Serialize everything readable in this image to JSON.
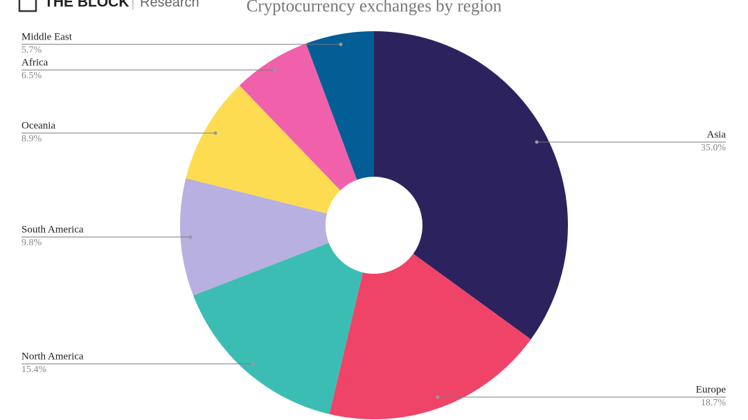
{
  "brand": "THE BLOCK",
  "brand_sub": "Research",
  "chart_data": {
    "type": "pie",
    "title": "Cryptocurrency exchanges by region",
    "categories": [
      "Asia",
      "Europe",
      "North America",
      "South America",
      "Oceania",
      "Africa",
      "Middle East"
    ],
    "values": [
      35.0,
      18.7,
      15.4,
      9.8,
      8.9,
      6.5,
      5.7
    ],
    "value_labels": [
      "35.0%",
      "18.7%",
      "15.4%",
      "9.8%",
      "8.9%",
      "6.5%",
      "5.7%"
    ],
    "colors": [
      "#2c235e",
      "#ef4468",
      "#3cbdb4",
      "#b7b0e0",
      "#fddc52",
      "#f060ab",
      "#045e96"
    ],
    "donut": true
  }
}
